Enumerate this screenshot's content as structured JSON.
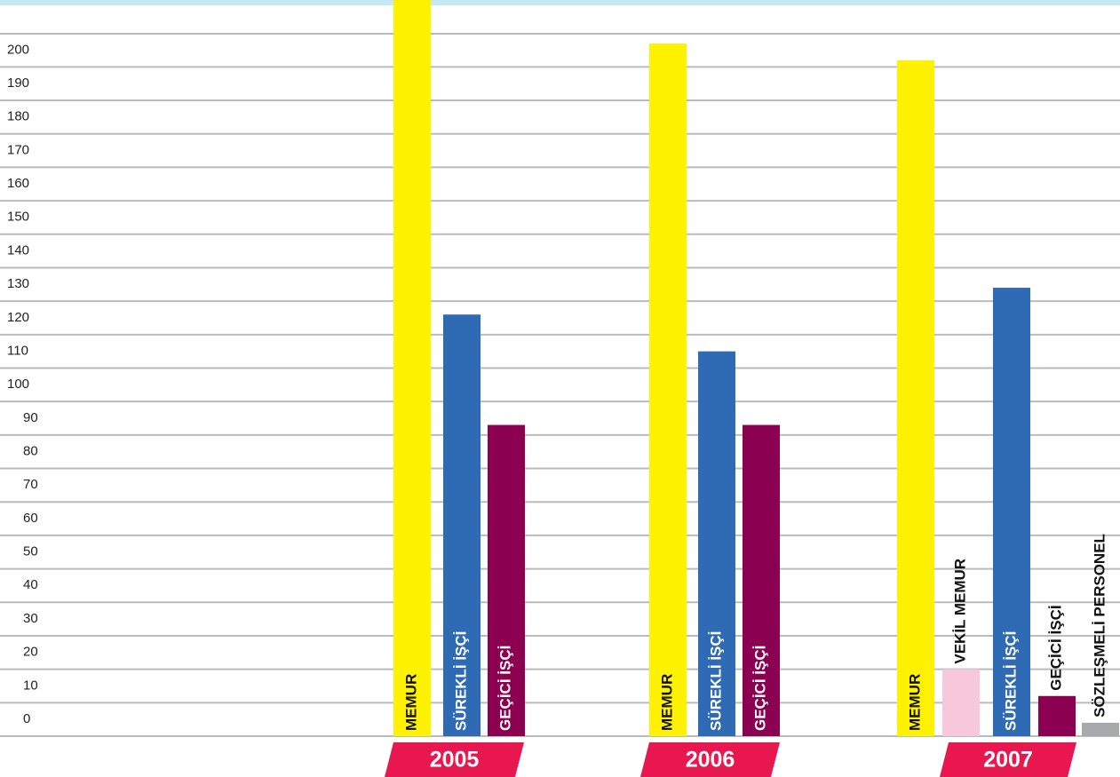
{
  "chart_data": {
    "type": "bar",
    "ylim": [
      0,
      220
    ],
    "yticks": [
      0,
      10,
      20,
      30,
      40,
      50,
      60,
      70,
      80,
      90,
      100,
      110,
      120,
      130,
      140,
      150,
      160,
      170,
      180,
      190,
      200
    ],
    "grid": true,
    "groups": [
      {
        "name": "2005",
        "bars": [
          {
            "name": "MEMUR",
            "value": 220,
            "color": "#fff200"
          },
          {
            "name": "SÜREKLİ İŞÇİ",
            "value": 126,
            "color": "#2f6ab4"
          },
          {
            "name": "GEÇİCİ İŞÇİ",
            "value": 93,
            "color": "#8b0050"
          }
        ]
      },
      {
        "name": "2006",
        "bars": [
          {
            "name": "MEMUR",
            "value": 207,
            "color": "#fff200"
          },
          {
            "name": "SÜREKLİ İŞÇİ",
            "value": 115,
            "color": "#2f6ab4"
          },
          {
            "name": "GEÇİCİ İŞÇİ",
            "value": 93,
            "color": "#8b0050"
          }
        ]
      },
      {
        "name": "2007",
        "bars": [
          {
            "name": "MEMUR",
            "value": 202,
            "color": "#fff200"
          },
          {
            "name": "VEKİL MEMUR",
            "value": 20,
            "color": "#f7c8dc"
          },
          {
            "name": "SÜREKLİ İŞÇİ",
            "value": 134,
            "color": "#2f6ab4"
          },
          {
            "name": "GEÇİCİ İŞÇİ",
            "value": 12,
            "color": "#8b0050"
          },
          {
            "name": "SÖZLEŞMELİ PERSONEL",
            "value": 4,
            "color": "#a7a9ac"
          }
        ]
      }
    ]
  }
}
